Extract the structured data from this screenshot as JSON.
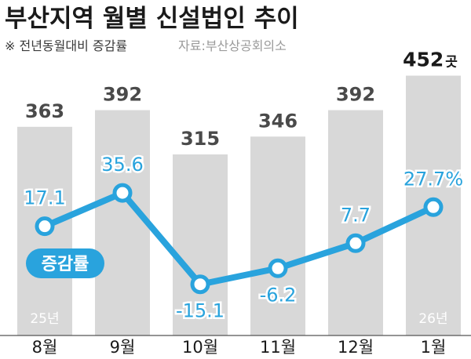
{
  "header": {
    "title": "부산지역 월별 신설법인 추이",
    "note": "※ 전년동월대비 증감률",
    "source": "자료:부산상공회의소"
  },
  "chart_data": {
    "type": "bar",
    "categories": [
      "8월",
      "9월",
      "10월",
      "11월",
      "12월",
      "1월"
    ],
    "ylim": [
      0,
      480
    ],
    "series": [
      {
        "type": "bar",
        "values": [
          363,
          392,
          315,
          346,
          392,
          452
        ],
        "value_labels": [
          "363",
          "392",
          "315",
          "346",
          "392",
          "452"
        ],
        "unit": "곳",
        "color": "#d8d8d8"
      },
      {
        "type": "line",
        "name": "증감률",
        "values": [
          17.1,
          35.6,
          -15.1,
          -6.2,
          7.7,
          27.7
        ],
        "value_labels": [
          "17.1",
          "35.6",
          "-15.1",
          "-6.2",
          "7.7",
          "27.7%"
        ],
        "color": "#29a3dd",
        "ylim": [
          -40,
          60
        ]
      }
    ],
    "annotations": {
      "year_start": "25년",
      "year_end": "26년"
    }
  },
  "colors": {
    "line": "#29a3dd",
    "bar": "#d8d8d8",
    "title": "#1a1a1a",
    "subtitle": "#4a4a4a",
    "bar_label": "#4a4a4a"
  }
}
